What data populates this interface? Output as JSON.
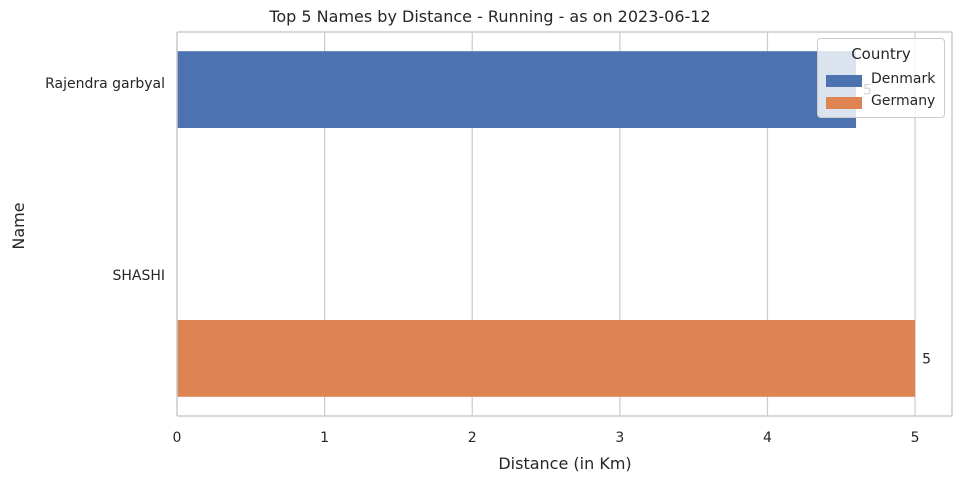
{
  "chart_data": {
    "type": "bar",
    "orientation": "horizontal",
    "title": "Top 5 Names by Distance - Running - as on 2023-06-12",
    "xlabel": "Distance (in Km)",
    "ylabel": "Name",
    "categories": [
      "Rajendra garbyal",
      "SHASHI"
    ],
    "series": [
      {
        "name": "Denmark",
        "color": "#4c72b0",
        "values": [
          4.6,
          null
        ],
        "labels": [
          "5",
          ""
        ]
      },
      {
        "name": "Germany",
        "color": "#dd8452",
        "values": [
          null,
          5.0
        ],
        "labels": [
          "",
          "5"
        ]
      }
    ],
    "xlim": [
      0,
      5.25
    ],
    "xticks": [
      0,
      1,
      2,
      3,
      4,
      5
    ],
    "grid": true,
    "legend": {
      "title": "Country",
      "placement": "top-right"
    }
  }
}
